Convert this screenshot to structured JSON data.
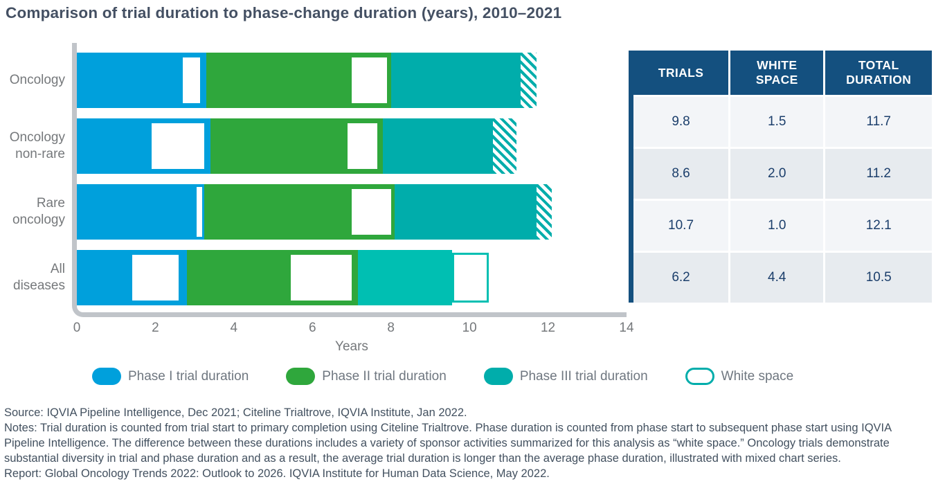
{
  "colors": {
    "phase1": "#00A0DC",
    "phase2": "#2FA73C",
    "phase3": "#00ADAB",
    "phase3light": "#00BFB2",
    "axis": "#C0C4C9",
    "table_header_bg": "#14507F",
    "table_row_odd": "#F3F5F8",
    "table_row_even": "#E7EBEF",
    "table_text": "#1B3E6B",
    "title_text": "#445063",
    "label_text": "#75787B",
    "footer_text": "#42505F"
  },
  "chart_data": {
    "type": "bar",
    "orientation": "horizontal",
    "title": "Comparison of trial duration to phase-change duration (years), 2010–2021",
    "xlabel": "Years",
    "x_ticks": [
      "0",
      "2",
      "4",
      "6",
      "8",
      "10",
      "12",
      "14"
    ],
    "x_max": 14,
    "grid": false,
    "legend_position": "bottom",
    "categories": [
      "Oncology",
      "Oncology non-rare",
      "Rare oncology",
      "All diseases"
    ],
    "bars": [
      {
        "category": "Oncology",
        "label_lines": [
          "Oncology"
        ],
        "segments": [
          {
            "name": "phase1",
            "start": 0,
            "end": 3.3
          },
          {
            "name": "phase2",
            "start": 3.3,
            "end": 8.0
          },
          {
            "name": "phase3",
            "start": 8.0,
            "end": 11.3
          }
        ],
        "hatch": {
          "start": 11.3,
          "end": 11.7
        },
        "white_boxes": [
          {
            "start": 2.65,
            "end": 3.2,
            "border": "phase1"
          },
          {
            "start": 6.95,
            "end": 7.95,
            "border": "phase2"
          }
        ]
      },
      {
        "category": "Oncology non-rare",
        "label_lines": [
          "Oncology",
          "non-rare"
        ],
        "segments": [
          {
            "name": "phase1",
            "start": 0,
            "end": 3.4
          },
          {
            "name": "phase2",
            "start": 3.4,
            "end": 7.8
          },
          {
            "name": "phase3",
            "start": 7.8,
            "end": 10.6
          }
        ],
        "hatch": {
          "start": 10.6,
          "end": 11.2
        },
        "white_boxes": [
          {
            "start": 1.85,
            "end": 3.3,
            "border": "phase1"
          },
          {
            "start": 6.85,
            "end": 7.7,
            "border": "phase2"
          }
        ]
      },
      {
        "category": "Rare oncology",
        "label_lines": [
          "Rare",
          "oncology"
        ],
        "segments": [
          {
            "name": "phase1",
            "start": 0,
            "end": 3.25
          },
          {
            "name": "phase2",
            "start": 3.25,
            "end": 8.1
          },
          {
            "name": "phase3",
            "start": 8.1,
            "end": 11.7
          }
        ],
        "hatch": {
          "start": 11.7,
          "end": 12.1
        },
        "white_boxes": [
          {
            "start": 3.05,
            "end": 3.2,
            "border": "none"
          },
          {
            "start": 6.95,
            "end": 8.05,
            "border": "phase2"
          }
        ]
      },
      {
        "category": "All diseases",
        "label_lines": [
          "All",
          "diseases"
        ],
        "segments": [
          {
            "name": "phase1",
            "start": 0,
            "end": 2.8
          },
          {
            "name": "phase2",
            "start": 2.8,
            "end": 7.15
          },
          {
            "name": "phase3light",
            "start": 7.15,
            "end": 9.55
          }
        ],
        "hatch": null,
        "white_boxes": [
          {
            "start": 1.35,
            "end": 2.65,
            "border": "phase1"
          },
          {
            "start": 5.4,
            "end": 7.05,
            "border": "phase2"
          },
          {
            "start": 9.55,
            "end": 10.5,
            "border": "phase3light"
          }
        ]
      }
    ],
    "legend": [
      {
        "label": "Phase I trial duration",
        "swatch": "phase1",
        "style": "solid"
      },
      {
        "label": "Phase II trial duration",
        "swatch": "phase2",
        "style": "solid"
      },
      {
        "label": "Phase III trial duration",
        "swatch": "phase3",
        "style": "solid"
      },
      {
        "label": "White space",
        "swatch": "phase3",
        "style": "outline"
      }
    ]
  },
  "table": {
    "headers": [
      "TRIALS",
      "WHITE\nSPACE",
      "TOTAL\nDURATION"
    ],
    "rows": [
      [
        "9.8",
        "1.5",
        "11.7"
      ],
      [
        "8.6",
        "2.0",
        "11.2"
      ],
      [
        "10.7",
        "1.0",
        "12.1"
      ],
      [
        "6.2",
        "4.4",
        "10.5"
      ]
    ]
  },
  "footer": {
    "source": "Source: IQVIA Pipeline Intelligence, Dec 2021; Citeline Trialtrove, IQVIA Institute, Jan 2022.",
    "notes": "Notes: Trial duration is counted from trial start to primary completion using Citeline Trialtrove. Phase duration is counted from phase start to subsequent phase start using IQVIA Pipeline Intelligence. The difference between these durations includes a variety of sponsor activities summarized for this analysis as “white space.” Oncology trials demonstrate substantial diversity in trial and phase duration and as a result, the average trial duration is longer than the average phase duration, illustrated with mixed chart series.",
    "report": "Report: Global Oncology Trends 2022: Outlook to 2026. IQVIA Institute for Human Data Science, May 2022."
  }
}
